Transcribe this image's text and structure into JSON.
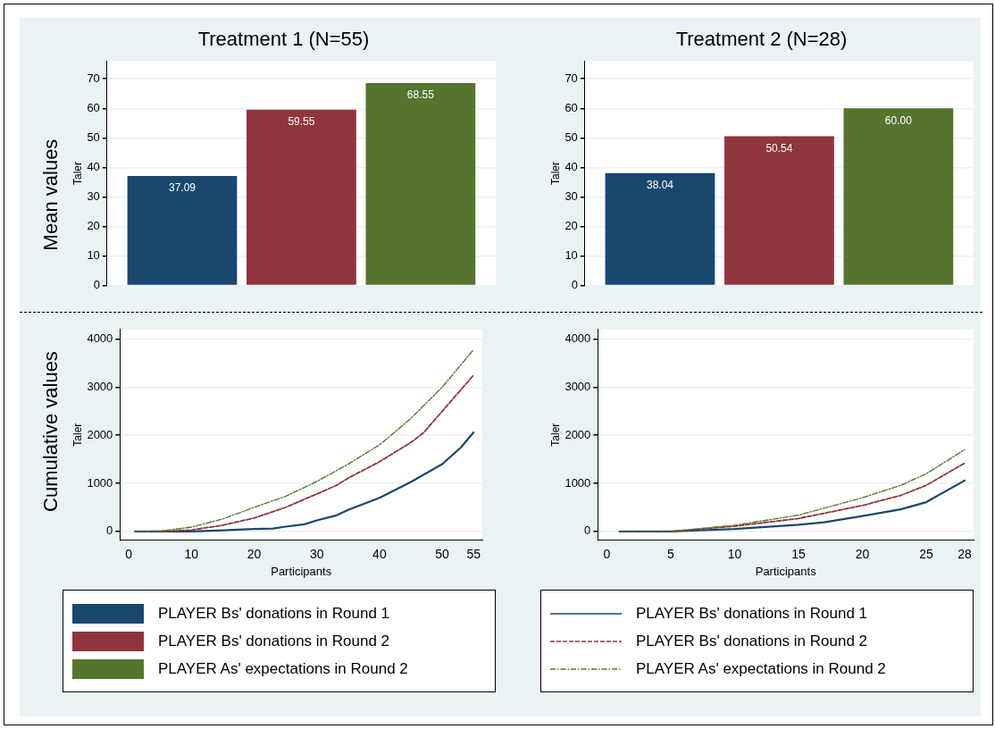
{
  "chart_data": [
    {
      "type": "bar",
      "title": "Treatment 1 (N=55)",
      "ylabel": "Taler",
      "annotations": [
        "Mean values"
      ],
      "categories": [
        null
      ],
      "ylim": [
        0,
        76
      ],
      "yticks": [
        0,
        10,
        20,
        30,
        40,
        50,
        60,
        70
      ],
      "grid": "y",
      "legend": "bottom",
      "series": [
        {
          "name": "PLAYER Bs' donations in Round 1",
          "color": "#1a476f",
          "values": [
            37.09
          ],
          "value_labels": [
            "37.09"
          ]
        },
        {
          "name": "PLAYER Bs' donations in Round 2",
          "color": "#90353b",
          "values": [
            59.55
          ],
          "value_labels": [
            "59.55"
          ]
        },
        {
          "name": "PLAYER As' expectations in Round 2",
          "color": "#55752f",
          "values": [
            68.55
          ],
          "value_labels": [
            "68.55"
          ]
        }
      ]
    },
    {
      "type": "bar",
      "title": "Treatment 2 (N=28)",
      "ylabel": "Taler",
      "categories": [
        null
      ],
      "ylim": [
        0,
        76
      ],
      "yticks": [
        0,
        10,
        20,
        30,
        40,
        50,
        60,
        70
      ],
      "grid": "y",
      "series": [
        {
          "color": "#1a476f",
          "values": [
            38.04
          ],
          "value_labels": [
            "38.04"
          ]
        },
        {
          "color": "#90353b",
          "values": [
            50.54
          ],
          "value_labels": [
            "50.54"
          ]
        },
        {
          "color": "#55752f",
          "values": [
            60
          ],
          "value_labels": [
            "60.00"
          ]
        }
      ]
    },
    {
      "type": "line",
      "xlabel": "Participants",
      "ylabel": "Taler",
      "annotations": [
        "Cumulative values"
      ],
      "xlim": [
        -1.4,
        56.4
      ],
      "xticks": [
        0,
        10,
        20,
        30,
        40,
        50,
        55
      ],
      "ylim": [
        -180,
        4200
      ],
      "yticks": [
        0,
        1000,
        2000,
        3000,
        4000
      ],
      "grid": "y",
      "marker": "none",
      "series": [
        {
          "color": "#1a476f",
          "line_style": "solid",
          "x": [
            1,
            10,
            20,
            23,
            25,
            28,
            30,
            33,
            35,
            40,
            45,
            50,
            53,
            55
          ],
          "values": [
            0,
            0,
            50,
            60,
            100,
            150,
            230,
            330,
            450,
            700,
            1030,
            1400,
            1750,
            2060
          ]
        },
        {
          "color": "#90353b",
          "line_style": "dashed",
          "x": [
            5,
            10,
            15,
            20,
            25,
            30,
            33,
            35,
            40,
            45,
            47,
            50,
            55
          ],
          "values": [
            0,
            30,
            130,
            280,
            500,
            780,
            950,
            1110,
            1450,
            1850,
            2050,
            2500,
            3250
          ]
        },
        {
          "color": "#55752f",
          "line_style": "dashdot",
          "x": [
            1,
            5,
            10,
            15,
            20,
            25,
            30,
            35,
            40,
            45,
            50,
            55
          ],
          "values": [
            0,
            10,
            90,
            260,
            500,
            730,
            1040,
            1400,
            1800,
            2350,
            3000,
            3780
          ]
        }
      ]
    },
    {
      "type": "line",
      "xlabel": "Participants",
      "ylabel": "Taler",
      "xlim": [
        -0.7,
        28.7
      ],
      "xticks": [
        0,
        5,
        10,
        15,
        20,
        25,
        28
      ],
      "ylim": [
        -180,
        4200
      ],
      "yticks": [
        0,
        1000,
        2000,
        3000,
        4000
      ],
      "grid": "y",
      "legend": "bottom",
      "marker": "none",
      "series": [
        {
          "name": "PLAYER Bs' donations in Round 1",
          "color": "#1a476f",
          "line_style": "solid",
          "x": [
            1,
            5,
            10,
            15,
            17,
            20,
            23,
            25,
            28
          ],
          "values": [
            0,
            0,
            50,
            140,
            190,
            320,
            460,
            610,
            1060
          ]
        },
        {
          "name": "PLAYER Bs' donations in Round 2",
          "color": "#90353b",
          "line_style": "dashed",
          "x": [
            5,
            10,
            15,
            20,
            23,
            25,
            28
          ],
          "values": [
            0,
            110,
            270,
            540,
            750,
            960,
            1420
          ]
        },
        {
          "name": "PLAYER As' expectations in Round 2",
          "color": "#55752f",
          "line_style": "dashdot",
          "x": [
            1,
            5,
            10,
            15,
            20,
            23,
            25,
            28
          ],
          "values": [
            0,
            0,
            130,
            340,
            700,
            960,
            1200,
            1700
          ]
        }
      ]
    }
  ]
}
